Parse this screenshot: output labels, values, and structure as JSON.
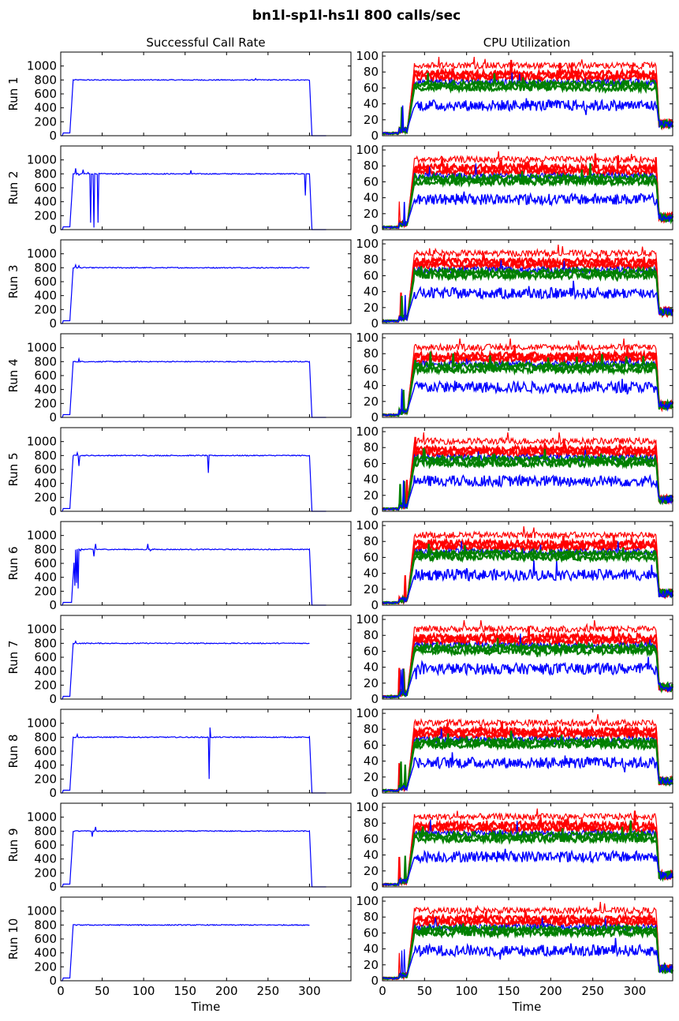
{
  "figure": {
    "title": "bn1l-sp1l-hs1l 800 calls/sec"
  },
  "chart_data": [
    {
      "type": "line",
      "panel": "left",
      "title": "Successful Call Rate",
      "xlabel": "Time",
      "xlim": [
        0,
        350
      ],
      "ylim": [
        0,
        1200
      ],
      "xticks": [
        0,
        50,
        100,
        150,
        200,
        250,
        300
      ],
      "yticks": [
        0,
        200,
        400,
        600,
        800,
        1000
      ],
      "series_color": "#0000ff",
      "plateau": 800,
      "rows": [
        {
          "label": "Run 1",
          "rise": 15,
          "fall": 300,
          "end": 320,
          "dips": [
            [
              235,
              820
            ]
          ]
        },
        {
          "label": "Run 2",
          "rise": 15,
          "fall": 300,
          "end": 320,
          "dips": [
            [
              18,
              880
            ],
            [
              22,
              780
            ],
            [
              27,
              860
            ],
            [
              33,
              820
            ],
            [
              36,
              100
            ],
            [
              40,
              30
            ],
            [
              45,
              100
            ],
            [
              48,
              800
            ],
            [
              157,
              850
            ],
            [
              295,
              490
            ]
          ]
        },
        {
          "label": "Run 3",
          "rise": 15,
          "fall": 300,
          "end": 300,
          "dips": [
            [
              18,
              840
            ],
            [
              22,
              830
            ]
          ]
        },
        {
          "label": "Run 4",
          "rise": 15,
          "fall": 300,
          "end": 320,
          "dips": [
            [
              22,
              840
            ]
          ]
        },
        {
          "label": "Run 5",
          "rise": 15,
          "fall": 300,
          "end": 320,
          "dips": [
            [
              20,
              840
            ],
            [
              22,
              650
            ],
            [
              178,
              550
            ]
          ]
        },
        {
          "label": "Run 6",
          "rise": 17,
          "fall": 300,
          "end": 320,
          "dips": [
            [
              17,
              280
            ],
            [
              19,
              320
            ],
            [
              21,
              240
            ],
            [
              24,
              780
            ],
            [
              40,
              700
            ],
            [
              42,
              880
            ],
            [
              105,
              880
            ],
            [
              108,
              780
            ]
          ]
        },
        {
          "label": "Run 7",
          "rise": 15,
          "fall": 300,
          "end": 300,
          "dips": [
            [
              18,
              830
            ]
          ]
        },
        {
          "label": "Run 8",
          "rise": 15,
          "fall": 300,
          "end": 320,
          "dips": [
            [
              20,
              840
            ],
            [
              179,
              200
            ],
            [
              180,
              940
            ]
          ]
        },
        {
          "label": "Run 9",
          "rise": 15,
          "fall": 300,
          "end": 320,
          "dips": [
            [
              38,
              720
            ],
            [
              42,
              860
            ]
          ]
        },
        {
          "label": "Run 10",
          "rise": 15,
          "fall": 300,
          "end": 300,
          "dips": []
        }
      ]
    },
    {
      "type": "line",
      "panel": "right",
      "title": "CPU Utilization",
      "xlabel": "Time",
      "xlim": [
        0,
        345
      ],
      "ylim": [
        0,
        105
      ],
      "xticks": [
        0,
        50,
        100,
        150,
        200,
        250,
        300
      ],
      "yticks": [
        0,
        20,
        40,
        60,
        80,
        100
      ],
      "rise": 38,
      "fall": 325,
      "series": [
        {
          "color": "#ff0000",
          "level": 88,
          "width": 1.2
        },
        {
          "color": "#ff0000",
          "level": 78,
          "width": 2.2
        },
        {
          "color": "#ff0000",
          "level": 73,
          "width": 2.2
        },
        {
          "color": "#0000ff",
          "level": 67,
          "width": 1.2
        },
        {
          "color": "#008000",
          "level": 65,
          "width": 2.2
        },
        {
          "color": "#008000",
          "level": 60,
          "width": 2.2
        },
        {
          "color": "#0000ff",
          "level": 38,
          "width": 1.5
        }
      ],
      "rows": [
        {
          "label": "Run 1"
        },
        {
          "label": "Run 2"
        },
        {
          "label": "Run 3"
        },
        {
          "label": "Run 4"
        },
        {
          "label": "Run 5"
        },
        {
          "label": "Run 6"
        },
        {
          "label": "Run 7"
        },
        {
          "label": "Run 8"
        },
        {
          "label": "Run 9"
        },
        {
          "label": "Run 10"
        }
      ]
    }
  ]
}
